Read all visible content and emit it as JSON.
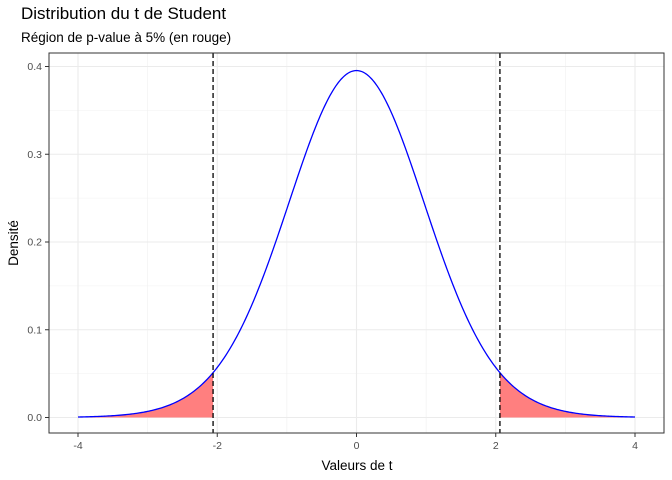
{
  "chart_data": {
    "type": "area",
    "title": "Distribution du t de Student",
    "subtitle": "Région de p-value à 5% (en rouge)",
    "xlabel": "Valeurs de t",
    "ylabel": "Densité",
    "xlim": [
      -4,
      4
    ],
    "ylim": [
      0,
      0.4
    ],
    "x_ticks": [
      -4,
      -2,
      0,
      2,
      4
    ],
    "x_tick_labels": [
      "-4",
      "-2",
      "0",
      "2",
      "4"
    ],
    "y_ticks": [
      0.0,
      0.1,
      0.2,
      0.3,
      0.4
    ],
    "y_tick_labels": [
      "0.0",
      "0.1",
      "0.2",
      "0.3",
      "0.4"
    ],
    "grid": true,
    "curve": {
      "x": [
        -4.0,
        -3.75,
        -3.5,
        -3.25,
        -3.0,
        -2.75,
        -2.5,
        -2.25,
        -2.06,
        -2.0,
        -1.75,
        -1.5,
        -1.25,
        -1.0,
        -0.75,
        -0.5,
        -0.25,
        0.0,
        0.25,
        0.5,
        0.75,
        1.0,
        1.25,
        1.5,
        1.75,
        2.0,
        2.06,
        2.25,
        2.5,
        2.75,
        3.0,
        3.25,
        3.5,
        3.75,
        4.0
      ],
      "y": [
        0.0005,
        0.0009,
        0.0016,
        0.0029,
        0.0054,
        0.0098,
        0.0175,
        0.0313,
        0.0477,
        0.0537,
        0.0858,
        0.1281,
        0.1811,
        0.2398,
        0.2964,
        0.3431,
        0.3748,
        0.3955,
        0.3748,
        0.3431,
        0.2964,
        0.2398,
        0.1811,
        0.1281,
        0.0858,
        0.0537,
        0.0477,
        0.0313,
        0.0175,
        0.0098,
        0.0054,
        0.0029,
        0.0016,
        0.0009,
        0.0005
      ],
      "color": "#0000FF"
    },
    "critical_values": [
      -2.06,
      2.06
    ],
    "critical_line_color": "#000000",
    "rejection_region_color": "#FF7F7F"
  }
}
